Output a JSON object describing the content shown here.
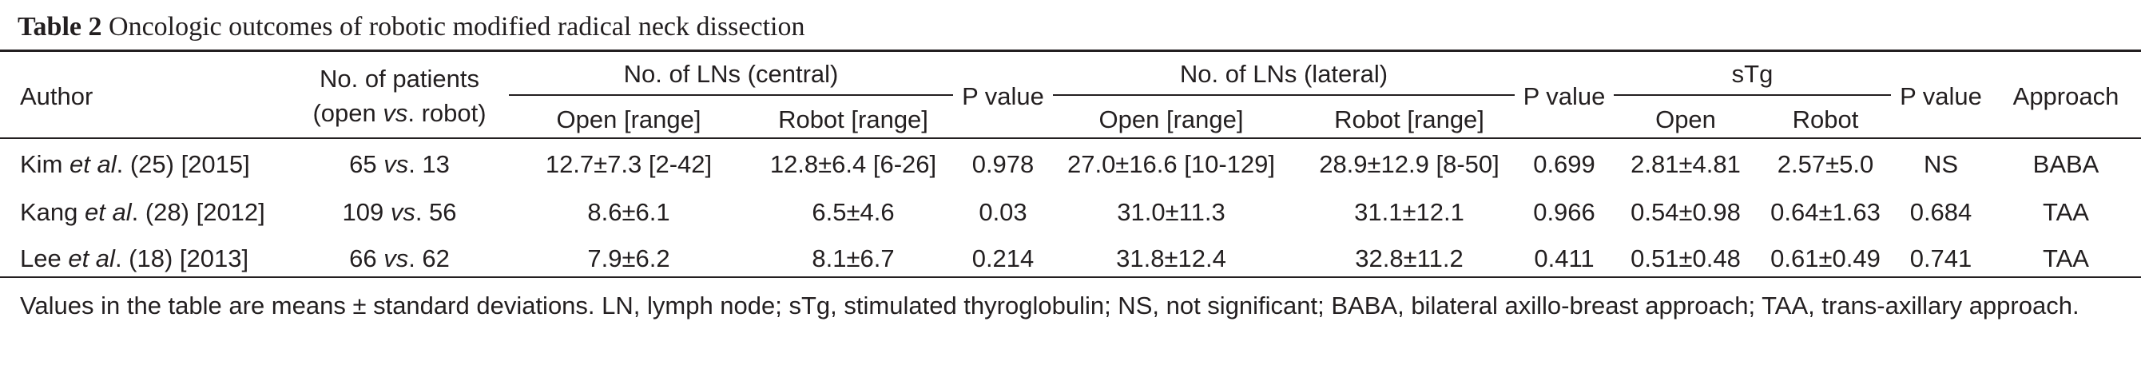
{
  "caption": {
    "label": "Table 2",
    "text": " Oncologic outcomes of robotic modified radical neck dissection"
  },
  "headers": {
    "author": "Author",
    "patients_line1": "No. of patients",
    "patients_line2_pre": "(open ",
    "patients_line2_vs": "vs",
    "patients_line2_post": ". robot)",
    "lns_central": "No. of LNs (central)",
    "p_value_1": "P value",
    "lns_lateral": "No. of LNs (lateral)",
    "p_value_2": "P value",
    "stg": "sTg",
    "p_value_3": "P value",
    "approach": "Approach",
    "open_range_1": "Open [range]",
    "robot_range_1": "Robot [range]",
    "open_range_2": "Open [range]",
    "robot_range_2": "Robot [range]",
    "open": "Open",
    "robot": "Robot"
  },
  "rows": [
    {
      "author_name": "Kim ",
      "author_etal": "et al",
      "author_ref": ". (25) [2015]",
      "patients_open": "65 ",
      "patients_vs": "vs",
      "patients_robot": ". 13",
      "central_open": "12.7±7.3 [2-42]",
      "central_robot": "12.8±6.4 [6-26]",
      "p1": "0.978",
      "lateral_open": "27.0±16.6 [10-129]",
      "lateral_robot": "28.9±12.9 [8-50]",
      "p2": "0.699",
      "stg_open": "2.81±4.81",
      "stg_robot": "2.57±5.0",
      "p3": "NS",
      "approach": "BABA"
    },
    {
      "author_name": "Kang ",
      "author_etal": "et al",
      "author_ref": ". (28) [2012]",
      "patients_open": "109 ",
      "patients_vs": "vs",
      "patients_robot": ". 56",
      "central_open": "8.6±6.1",
      "central_robot": "6.5±4.6",
      "p1": "0.03",
      "lateral_open": "31.0±11.3",
      "lateral_robot": "31.1±12.1",
      "p2": "0.966",
      "stg_open": "0.54±0.98",
      "stg_robot": "0.64±1.63",
      "p3": "0.684",
      "approach": "TAA"
    },
    {
      "author_name": "Lee ",
      "author_etal": "et al",
      "author_ref": ". (18) [2013]",
      "patients_open": "66 ",
      "patients_vs": "vs",
      "patients_robot": ". 62",
      "central_open": "7.9±6.2",
      "central_robot": "8.1±6.7",
      "p1": "0.214",
      "lateral_open": "31.8±12.4",
      "lateral_robot": "32.8±11.2",
      "p2": "0.411",
      "stg_open": "0.51±0.48",
      "stg_robot": "0.61±0.49",
      "p3": "0.741",
      "approach": "TAA"
    }
  ],
  "footnote": "Values in the table are means ± standard deviations. LN, lymph node; sTg, stimulated thyroglobulin; NS, not significant; BABA, bilateral axillo-breast approach; TAA, trans-axillary approach."
}
